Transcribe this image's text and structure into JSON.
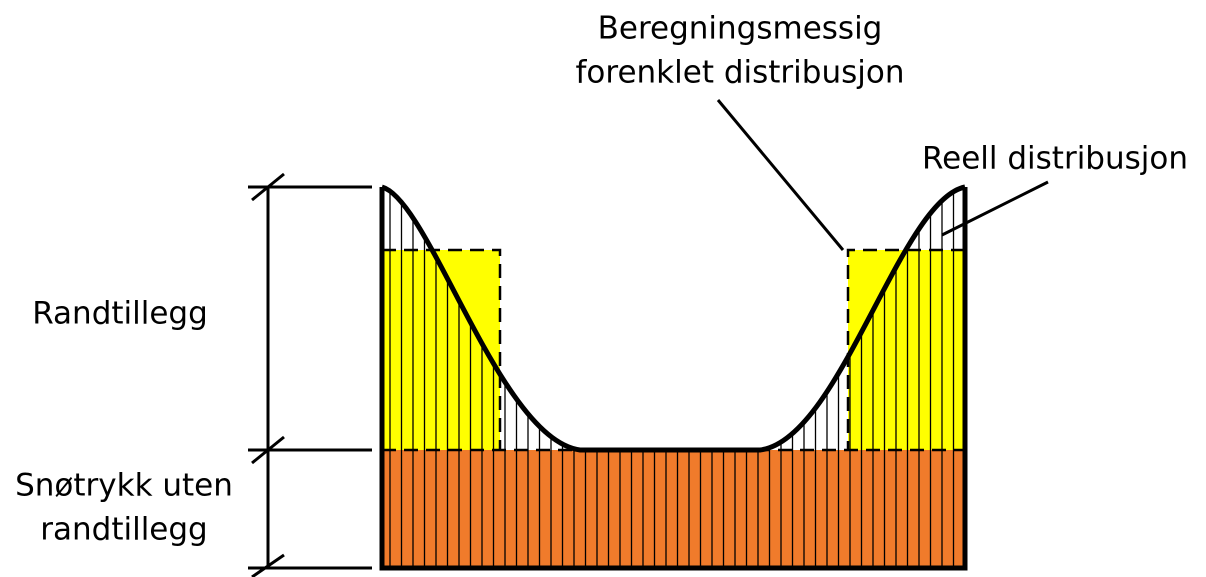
{
  "labels": {
    "simplified": [
      "Beregningsmessig",
      "forenklet distribusjon"
    ],
    "real": "Reell distribusjon",
    "edge_load": "Randtillegg",
    "base_load": [
      "Snøtrykk uten",
      "randtillegg"
    ]
  }
}
